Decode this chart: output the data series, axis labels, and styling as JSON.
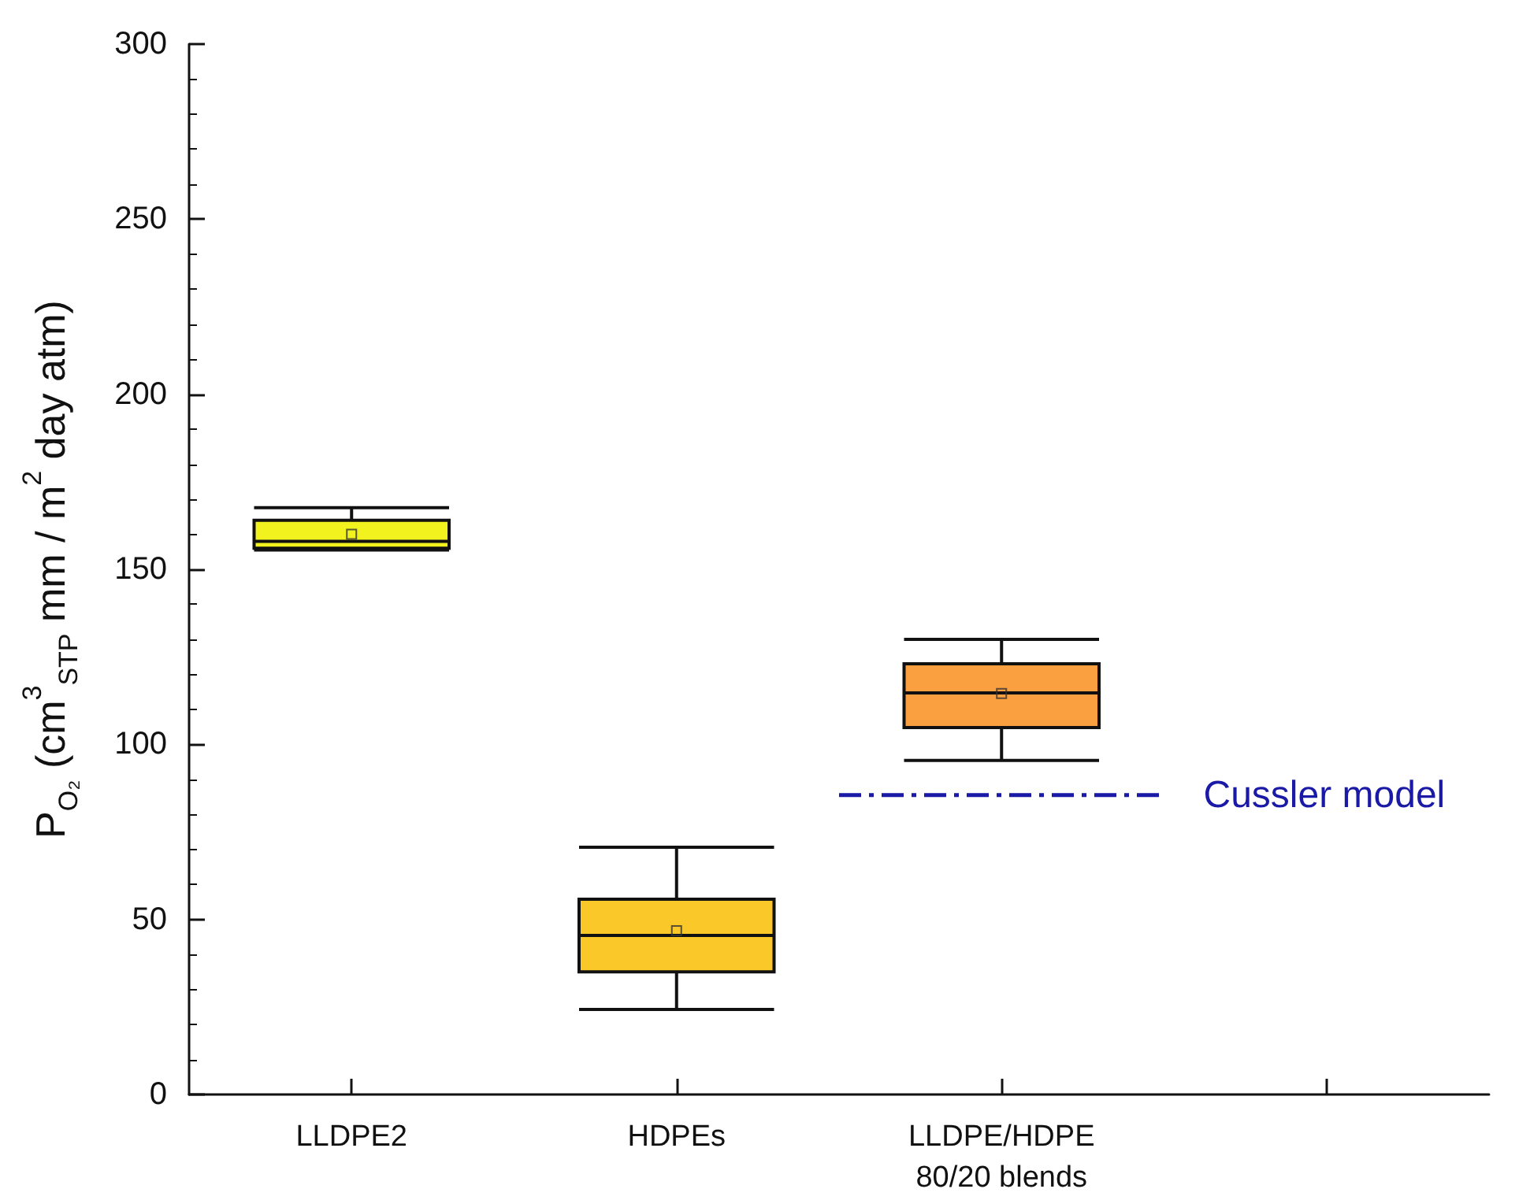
{
  "chart_data": {
    "type": "box",
    "ylabel": "P$_{O₂}$ (cm$^{3}$$_{STP}$ mm / m$^{2}$ day atm)",
    "categories": [
      "LLDPE2",
      "HDPEs",
      "LLDPE/HDPE\n80/20 blends",
      null
    ],
    "colors": [
      "#f2f21e",
      "#fbc82a",
      "#fba040",
      null
    ],
    "boxes": [
      {
        "low": 155.5,
        "q1": 156,
        "median": 158,
        "q3": 164,
        "high": 167.6,
        "mean": 160
      },
      {
        "low": 24.3,
        "q1": 35,
        "median": 45.4,
        "q3": 55.8,
        "high": 70.6,
        "mean": 46.8
      },
      {
        "low": 95.4,
        "q1": 104.8,
        "median": 114.7,
        "q3": 123,
        "high": 130,
        "mean": 114.5
      },
      null
    ],
    "ylim": [
      0,
      300
    ],
    "yticks": [
      0,
      50,
      100,
      150,
      200,
      250,
      300
    ],
    "grid": false,
    "ref_lines": [
      {
        "axis": "y",
        "value": 85.5,
        "label": "Cussler model",
        "color": "#1a1aa6",
        "line_style": "dashed"
      }
    ]
  }
}
